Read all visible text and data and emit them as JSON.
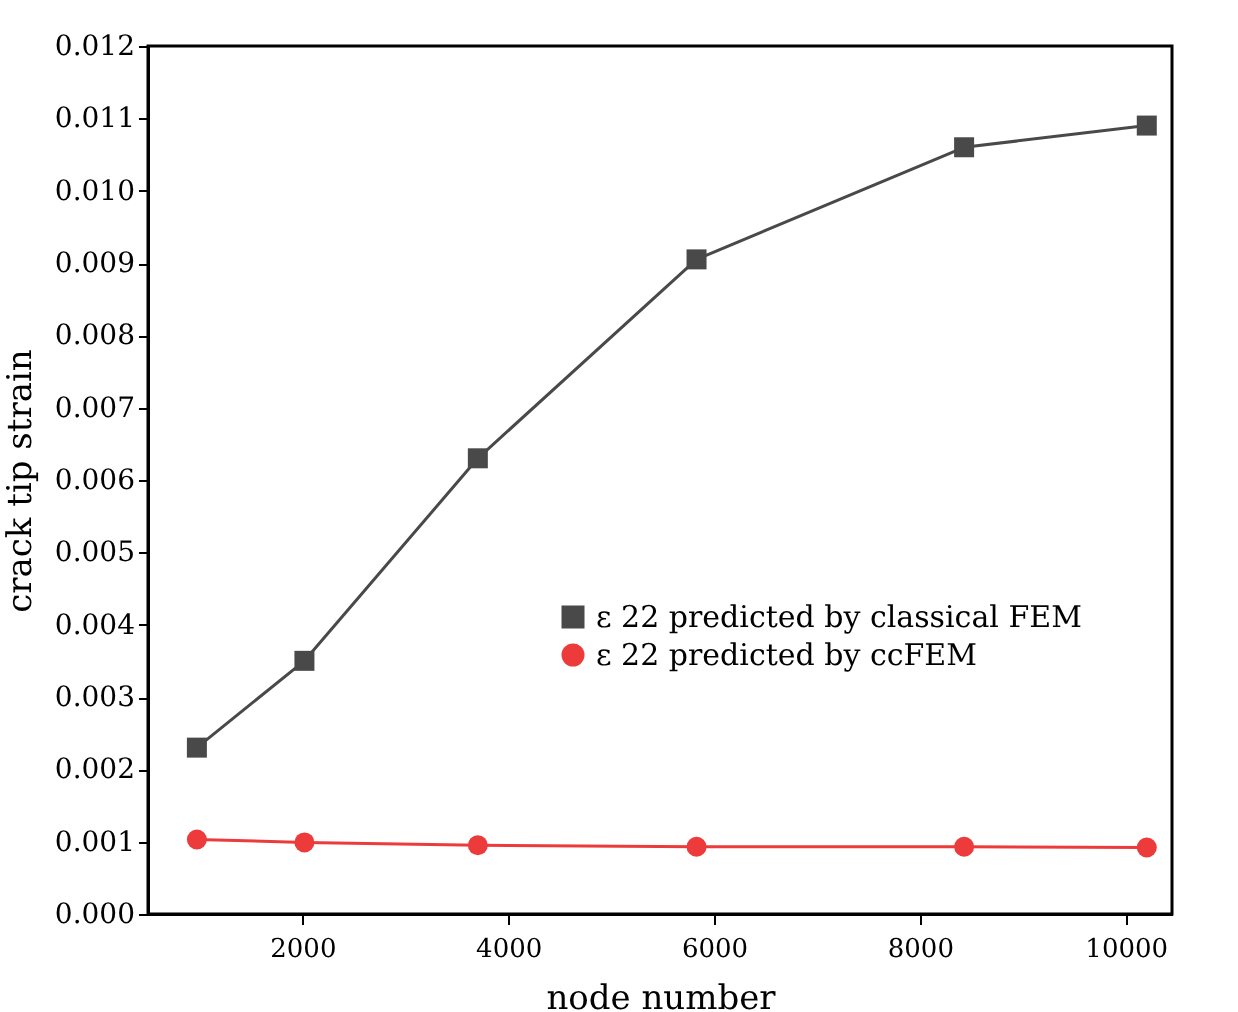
{
  "chart_data": {
    "type": "line",
    "xlabel": "node number",
    "ylabel": "crack tip strain",
    "x": [
      975,
      2020,
      3705,
      5830,
      8430,
      10205
    ],
    "xlim": [
      500,
      10450
    ],
    "xticks": [
      2000,
      4000,
      6000,
      8000,
      10000
    ],
    "ylim": [
      0,
      0.012
    ],
    "yticks": [
      {
        "value": 0,
        "label": "0.000"
      },
      0.001,
      0.002,
      0.003,
      0.004,
      0.005,
      0.006,
      0.007,
      0.008,
      0.009,
      {
        "value": 0.01,
        "label": "0.010"
      },
      0.011,
      0.012
    ],
    "series": [
      {
        "name": "ε 22 predicted by classical FEM",
        "color": "#494949",
        "marker": "square",
        "values": [
          0.0023,
          0.0035,
          0.0063,
          0.00905,
          0.0106,
          0.0109
        ]
      },
      {
        "name": "ε 22 predicted by ccFEM",
        "color": "#ed3a3a",
        "marker": "circle",
        "values": [
          0.00103,
          0.00099,
          0.00095,
          0.00093,
          0.00093,
          0.00092
        ]
      }
    ],
    "legend": "right",
    "grid": false
  }
}
